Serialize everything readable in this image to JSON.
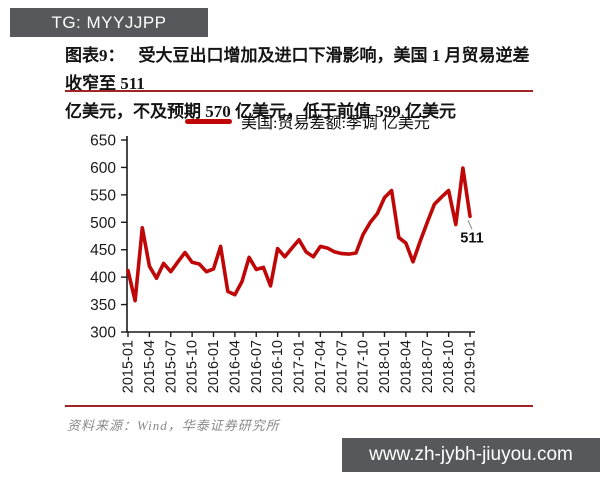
{
  "header": {
    "badge": "TG: MYYJJPP"
  },
  "figure": {
    "label": "图表9：",
    "title_line1": "受大豆出口增加及进口下滑影响，美国 1 月贸易逆差收窄至 511",
    "title_line2": "亿美元，不及预期 570 亿美元，低于前值 599 亿美元"
  },
  "legend": {
    "label": "美国:贸易差额:季调 亿美元"
  },
  "chart_data": {
    "type": "line",
    "title": "",
    "xlabel": "",
    "ylabel": "",
    "ylim": [
      300,
      650
    ],
    "ytick_step": 50,
    "grid": false,
    "legend_position": "top-center",
    "line_color": "#c00707",
    "xtick_labels": [
      "2015-01",
      "2015-04",
      "2015-07",
      "2015-10",
      "2016-01",
      "2016-04",
      "2016-07",
      "2016-10",
      "2017-01",
      "2017-04",
      "2017-07",
      "2017-10",
      "2018-01",
      "2018-04",
      "2018-07",
      "2018-10",
      "2019-01"
    ],
    "x": [
      "2015-01",
      "2015-02",
      "2015-03",
      "2015-04",
      "2015-05",
      "2015-06",
      "2015-07",
      "2015-08",
      "2015-09",
      "2015-10",
      "2015-11",
      "2015-12",
      "2016-01",
      "2016-02",
      "2016-03",
      "2016-04",
      "2016-05",
      "2016-06",
      "2016-07",
      "2016-08",
      "2016-09",
      "2016-10",
      "2016-11",
      "2016-12",
      "2017-01",
      "2017-02",
      "2017-03",
      "2017-04",
      "2017-05",
      "2017-06",
      "2017-07",
      "2017-08",
      "2017-09",
      "2017-10",
      "2017-11",
      "2017-12",
      "2018-01",
      "2018-02",
      "2018-03",
      "2018-04",
      "2018-05",
      "2018-06",
      "2018-07",
      "2018-08",
      "2018-09",
      "2018-10",
      "2018-11",
      "2018-12",
      "2019-01"
    ],
    "series": [
      {
        "name": "美国:贸易差额:季调 亿美元",
        "values": [
          412,
          357,
          490,
          420,
          398,
          425,
          410,
          428,
          445,
          427,
          424,
          410,
          415,
          456,
          374,
          368,
          392,
          436,
          414,
          418,
          384,
          452,
          437,
          453,
          468,
          446,
          437,
          456,
          453,
          446,
          443,
          442,
          444,
          478,
          500,
          516,
          545,
          558,
          472,
          462,
          428,
          465,
          500,
          533,
          546,
          558,
          496,
          599,
          511
        ]
      }
    ],
    "annotation": {
      "text": "511",
      "x": "2019-01",
      "value": 511
    }
  },
  "footer": {
    "source": "资料来源：Wind，华泰证券研究所",
    "website": "www.zh-jybh-jiuyou.com"
  },
  "colors": {
    "accent-red": "#c00707",
    "rule-red": "#a12424",
    "badge-bg": "#57585b",
    "title-text": "#141414",
    "axis-text": "#1a1a1a",
    "source-text": "#8a8a8a",
    "leader-gray": "#999999"
  }
}
